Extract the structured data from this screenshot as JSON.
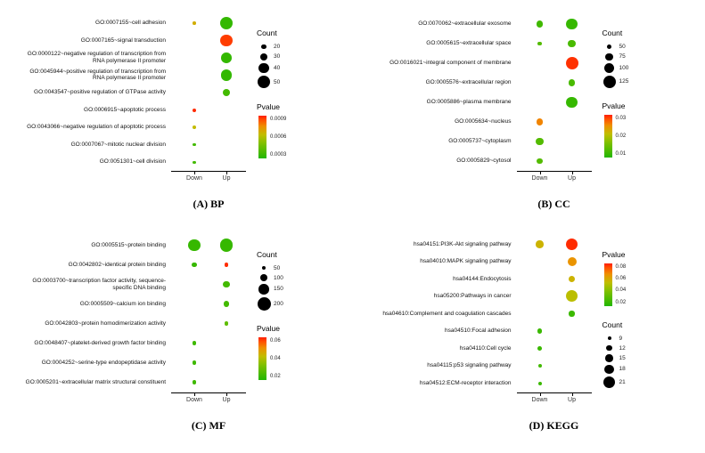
{
  "page": {
    "background": "#ffffff"
  },
  "colors": {
    "dot_gradient_stops": [
      [
        0,
        "#22b600"
      ],
      [
        0.35,
        "#7fc000"
      ],
      [
        0.55,
        "#c0be00"
      ],
      [
        0.75,
        "#ee9000"
      ],
      [
        0.9,
        "#ff5000"
      ],
      [
        1,
        "#ff1e00"
      ]
    ],
    "count_circle": "#000000",
    "axis_line": "#000000"
  },
  "chart_data": [
    {
      "type": "bubble",
      "caption": "(A) BP",
      "x_categories": [
        "Down",
        "Up"
      ],
      "categories": [
        "GO:0007155~cell adhesion",
        "GO:0007165~signal transduction",
        "GO:0000122~negative regulation of transcription from RNA polymerase II promoter",
        "GO:0045944~positive regulation of transcription from RNA polymerase II promoter",
        "GO:0043547~positive regulation of GTPase activity",
        "GO:0006915~apoptotic process",
        "GO:0043066~negative regulation of apoptotic process",
        "GO:0007067~mitotic nuclear division",
        "GO:0051301~cell division"
      ],
      "size_domain": [
        10,
        50
      ],
      "radius_px": [
        1.5,
        7
      ],
      "color_domain": [
        0.0001,
        0.0009
      ],
      "points": [
        {
          "category": 0,
          "x": "Down",
          "count": 12,
          "pvalue": 0.0006
        },
        {
          "category": 0,
          "x": "Up",
          "count": 50,
          "pvalue": 0.00015
        },
        {
          "category": 1,
          "x": "Up",
          "count": 48,
          "pvalue": 0.00085
        },
        {
          "category": 2,
          "x": "Up",
          "count": 42,
          "pvalue": 0.00015
        },
        {
          "category": 3,
          "x": "Up",
          "count": 46,
          "pvalue": 0.00015
        },
        {
          "category": 4,
          "x": "Up",
          "count": 30,
          "pvalue": 0.0002
        },
        {
          "category": 5,
          "x": "Down",
          "count": 14,
          "pvalue": 0.00088
        },
        {
          "category": 6,
          "x": "Down",
          "count": 13,
          "pvalue": 0.00055
        },
        {
          "category": 7,
          "x": "Down",
          "count": 11,
          "pvalue": 0.0002
        },
        {
          "category": 8,
          "x": "Down",
          "count": 11,
          "pvalue": 0.0002
        }
      ],
      "legend": {
        "order": [
          "count",
          "pvalue"
        ],
        "count": {
          "title": "Count",
          "values": [
            20,
            30,
            40,
            50
          ]
        },
        "pvalue": {
          "title": "Pvalue",
          "ticks": [
            "0.0009",
            "0.0006",
            "0.0003"
          ]
        }
      }
    },
    {
      "type": "bubble",
      "caption": "(B) CC",
      "x_categories": [
        "Down",
        "Up"
      ],
      "categories": [
        "GO:0070062~extracellular exosome",
        "GO:0005615~extracellular space",
        "GO:0016021~integral component of membrane",
        "GO:0005576~extracellular region",
        "GO:0005886~plasma membrane",
        "GO:0005634~nucleus",
        "GO:0005737~cytoplasm",
        "GO:0005829~cytosol"
      ],
      "size_domain": [
        40,
        125
      ],
      "radius_px": [
        2,
        7
      ],
      "color_domain": [
        0.003,
        0.03
      ],
      "points": [
        {
          "category": 0,
          "x": "Down",
          "count": 70,
          "pvalue": 0.006
        },
        {
          "category": 0,
          "x": "Up",
          "count": 110,
          "pvalue": 0.005
        },
        {
          "category": 1,
          "x": "Down",
          "count": 42,
          "pvalue": 0.008
        },
        {
          "category": 1,
          "x": "Up",
          "count": 75,
          "pvalue": 0.007
        },
        {
          "category": 2,
          "x": "Up",
          "count": 125,
          "pvalue": 0.029
        },
        {
          "category": 3,
          "x": "Up",
          "count": 70,
          "pvalue": 0.007
        },
        {
          "category": 4,
          "x": "Up",
          "count": 115,
          "pvalue": 0.005
        },
        {
          "category": 5,
          "x": "Down",
          "count": 70,
          "pvalue": 0.024
        },
        {
          "category": 6,
          "x": "Down",
          "count": 75,
          "pvalue": 0.008
        },
        {
          "category": 7,
          "x": "Down",
          "count": 60,
          "pvalue": 0.008
        }
      ],
      "legend": {
        "order": [
          "count",
          "pvalue"
        ],
        "count": {
          "title": "Count",
          "values": [
            50,
            75,
            100,
            125
          ]
        },
        "pvalue": {
          "title": "Pvalue",
          "ticks": [
            "0.03",
            "0.02",
            "0.01"
          ]
        }
      }
    },
    {
      "type": "bubble",
      "caption": "(C) MF",
      "x_categories": [
        "Down",
        "Up"
      ],
      "categories": [
        "GO:0005515~protein binding",
        "GO:0042802~identical protein binding",
        "GO:0003700~transcription factor activity, sequence-specific DNA binding",
        "GO:0005509~calcium ion binding",
        "GO:0042803~protein homodimerization activity",
        "GO:0048407~platelet-derived growth factor binding",
        "GO:0004252~serine-type endopeptidase activity",
        "GO:0005201~extracellular matrix structural constituent"
      ],
      "size_domain": [
        40,
        200
      ],
      "radius_px": [
        2,
        7.5
      ],
      "color_domain": [
        0.005,
        0.07
      ],
      "points": [
        {
          "category": 0,
          "x": "Down",
          "count": 180,
          "pvalue": 0.01
        },
        {
          "category": 0,
          "x": "Up",
          "count": 190,
          "pvalue": 0.01
        },
        {
          "category": 1,
          "x": "Down",
          "count": 55,
          "pvalue": 0.01
        },
        {
          "category": 1,
          "x": "Up",
          "count": 50,
          "pvalue": 0.068
        },
        {
          "category": 2,
          "x": "Up",
          "count": 90,
          "pvalue": 0.013
        },
        {
          "category": 3,
          "x": "Up",
          "count": 80,
          "pvalue": 0.013
        },
        {
          "category": 4,
          "x": "Up",
          "count": 50,
          "pvalue": 0.02
        },
        {
          "category": 5,
          "x": "Down",
          "count": 42,
          "pvalue": 0.012
        },
        {
          "category": 6,
          "x": "Down",
          "count": 42,
          "pvalue": 0.012
        },
        {
          "category": 7,
          "x": "Down",
          "count": 42,
          "pvalue": 0.012
        }
      ],
      "legend": {
        "order": [
          "count",
          "pvalue"
        ],
        "count": {
          "title": "Count",
          "values": [
            50,
            100,
            150,
            200
          ]
        },
        "pvalue": {
          "title": "Pvalue",
          "ticks": [
            "0.06",
            "0.04",
            "0.02"
          ]
        }
      }
    },
    {
      "type": "bubble",
      "caption": "(D) KEGG",
      "x_categories": [
        "Down",
        "Up"
      ],
      "categories": [
        "hsa04151:PI3K-Akt signaling pathway",
        "hsa04010:MAPK signaling pathway",
        "hsa04144:Endocytosis",
        "hsa05200:Pathways in cancer",
        "hsa04610:Complement and coagulation cascades",
        "hsa04510:Focal adhesion",
        "hsa04110:Cell cycle",
        "hsa04115:p53 signaling pathway",
        "hsa04512:ECM-receptor interaction"
      ],
      "size_domain": [
        9,
        21
      ],
      "radius_px": [
        2,
        6.5
      ],
      "color_domain": [
        0.005,
        0.08
      ],
      "points": [
        {
          "category": 0,
          "x": "Down",
          "count": 15,
          "pvalue": 0.05
        },
        {
          "category": 0,
          "x": "Up",
          "count": 21,
          "pvalue": 0.078
        },
        {
          "category": 1,
          "x": "Up",
          "count": 17,
          "pvalue": 0.06
        },
        {
          "category": 2,
          "x": "Up",
          "count": 14,
          "pvalue": 0.05
        },
        {
          "category": 3,
          "x": "Up",
          "count": 21,
          "pvalue": 0.045
        },
        {
          "category": 4,
          "x": "Up",
          "count": 12,
          "pvalue": 0.012
        },
        {
          "category": 5,
          "x": "Down",
          "count": 11,
          "pvalue": 0.012
        },
        {
          "category": 6,
          "x": "Down",
          "count": 10,
          "pvalue": 0.012
        },
        {
          "category": 7,
          "x": "Down",
          "count": 9,
          "pvalue": 0.014
        },
        {
          "category": 8,
          "x": "Down",
          "count": 9,
          "pvalue": 0.012
        }
      ],
      "legend": {
        "order": [
          "pvalue",
          "count"
        ],
        "count": {
          "title": "Count",
          "values": [
            9,
            12,
            15,
            18,
            21
          ]
        },
        "pvalue": {
          "title": "Pvalue",
          "ticks": [
            "0.08",
            "0.06",
            "0.04",
            "0.02"
          ]
        }
      }
    }
  ]
}
